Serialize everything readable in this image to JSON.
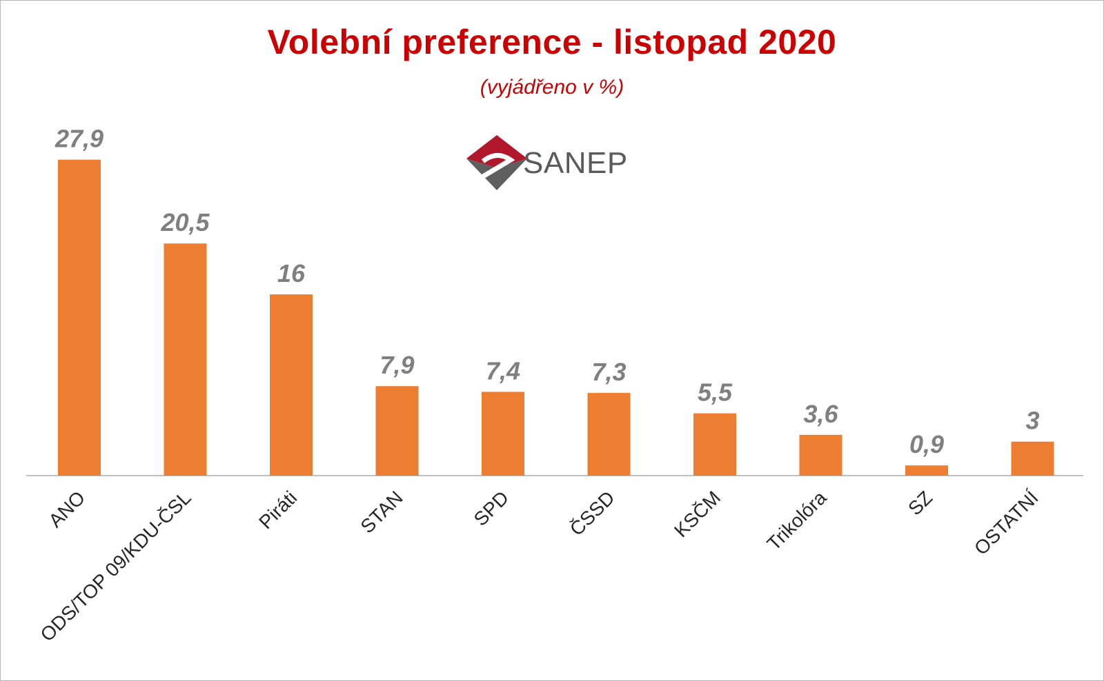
{
  "chart_data": {
    "type": "bar",
    "title": "Volební preference - listopad 2020",
    "subtitle": "(vyjádřeno v %)",
    "categories": [
      "ANO",
      "ODS/TOP 09/KDU-ČSL",
      "Piráti",
      "STAN",
      "SPD",
      "ČSSD",
      "KSČM",
      "Trikolóra",
      "SZ",
      "OSTATNÍ"
    ],
    "values": [
      27.9,
      20.5,
      16,
      7.9,
      7.4,
      7.3,
      5.5,
      3.6,
      0.9,
      3
    ],
    "value_labels": [
      "27,9",
      "20,5",
      "16",
      "7,9",
      "7,4",
      "7,3",
      "5,5",
      "3,6",
      "0,9",
      "3"
    ],
    "ylim": [
      0,
      28
    ],
    "grid": false,
    "bar_color": "#ed7d31",
    "value_label_color": "#7f7f7f",
    "title_color": "#cc0000"
  },
  "logo": {
    "text": "SANEP",
    "icon": "sanep-diamond-logo"
  }
}
